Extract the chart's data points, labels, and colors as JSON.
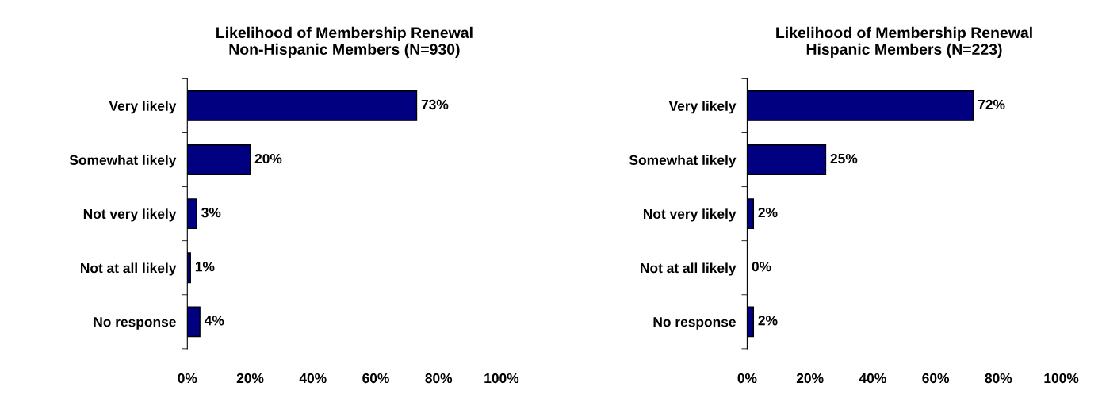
{
  "chart_data": [
    {
      "type": "bar",
      "orientation": "horizontal",
      "title": "Likelihood of Membership Renewal\nNon-Hispanic Members (N=930)",
      "categories": [
        "Very likely",
        "Somewhat likely",
        "Not very likely",
        "Not at all likely",
        "No response"
      ],
      "values": [
        73,
        20,
        3,
        1,
        4
      ],
      "value_labels": [
        "73%",
        "20%",
        "3%",
        "1%",
        "4%"
      ],
      "color": "#000080",
      "xlim": [
        0,
        100
      ],
      "xticks": [
        {
          "value": 0,
          "label": "0%"
        },
        {
          "value": 20,
          "label": "20%"
        },
        {
          "value": 40,
          "label": "40%"
        },
        {
          "value": 60,
          "label": "60%"
        },
        {
          "value": 80,
          "label": "80%"
        },
        {
          "value": 100,
          "label": "100%"
        }
      ],
      "grid": false
    },
    {
      "type": "bar",
      "orientation": "horizontal",
      "title": "Likelihood of Membership Renewal\nHispanic Members (N=223)",
      "categories": [
        "Very likely",
        "Somewhat likely",
        "Not very likely",
        "Not at all likely",
        "No response"
      ],
      "values": [
        72,
        25,
        2,
        0,
        2
      ],
      "value_labels": [
        "72%",
        "25%",
        "2%",
        "0%",
        "2%"
      ],
      "color": "#000080",
      "xlim": [
        0,
        100
      ],
      "xticks": [
        {
          "value": 0,
          "label": "0%"
        },
        {
          "value": 20,
          "label": "20%"
        },
        {
          "value": 40,
          "label": "40%"
        },
        {
          "value": 60,
          "label": "60%"
        },
        {
          "value": 80,
          "label": "80%"
        },
        {
          "value": 100,
          "label": "100%"
        }
      ],
      "grid": false
    }
  ]
}
